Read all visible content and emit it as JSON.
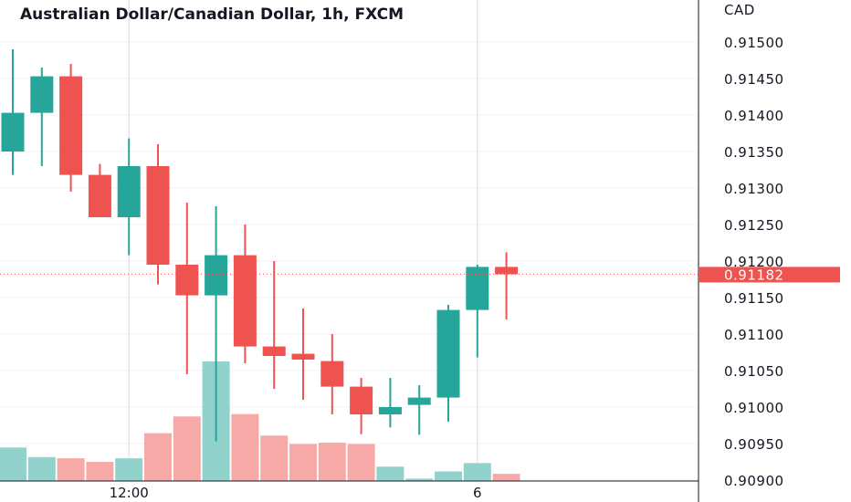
{
  "chart_data": {
    "type": "candlestick",
    "title": "Australian Dollar/Canadian Dollar, 1h, FXCM",
    "currency_label": "CAD",
    "y_ticks": [
      "0.91500",
      "0.91450",
      "0.91400",
      "0.91350",
      "0.91300",
      "0.91250",
      "0.91200",
      "0.91150",
      "0.91100",
      "0.91050",
      "0.91000",
      "0.90950",
      "0.90900"
    ],
    "ylim": [
      0.909,
      0.9155
    ],
    "x_ticks": [
      {
        "label": "12:00",
        "bar": 4
      },
      {
        "label": "6",
        "bar": 16
      }
    ],
    "vertical_gridlines_at_bars": [
      4,
      16
    ],
    "last_price": 0.91182,
    "last_price_label": "0.91182",
    "colors": {
      "up": "#26a69a",
      "down": "#ef5350",
      "up_volume": "#92d2cc",
      "down_volume": "#f7a9a7",
      "grid": "#f0f3fa",
      "axis": "#131722"
    },
    "volume_max": 100,
    "candles": [
      {
        "o": 0.9135,
        "h": 0.9149,
        "l": 0.91318,
        "c": 0.91403,
        "v": 28
      },
      {
        "o": 0.91403,
        "h": 0.91465,
        "l": 0.9133,
        "c": 0.91453,
        "v": 20
      },
      {
        "o": 0.91453,
        "h": 0.9147,
        "l": 0.91295,
        "c": 0.91318,
        "v": 19
      },
      {
        "o": 0.91318,
        "h": 0.91333,
        "l": 0.9126,
        "c": 0.9126,
        "v": 16
      },
      {
        "o": 0.9126,
        "h": 0.91368,
        "l": 0.91208,
        "c": 0.9133,
        "v": 19
      },
      {
        "o": 0.9133,
        "h": 0.9136,
        "l": 0.91168,
        "c": 0.91195,
        "v": 40
      },
      {
        "o": 0.91195,
        "h": 0.9128,
        "l": 0.91045,
        "c": 0.91153,
        "v": 54
      },
      {
        "o": 0.91153,
        "h": 0.91275,
        "l": 0.90953,
        "c": 0.91208,
        "v": 100
      },
      {
        "o": 0.91208,
        "h": 0.9125,
        "l": 0.9106,
        "c": 0.91083,
        "v": 56
      },
      {
        "o": 0.91083,
        "h": 0.912,
        "l": 0.91025,
        "c": 0.9107,
        "v": 38
      },
      {
        "o": 0.91073,
        "h": 0.91135,
        "l": 0.9101,
        "c": 0.91065,
        "v": 31
      },
      {
        "o": 0.91063,
        "h": 0.911,
        "l": 0.9099,
        "c": 0.91028,
        "v": 32
      },
      {
        "o": 0.91028,
        "h": 0.9104,
        "l": 0.90963,
        "c": 0.9099,
        "v": 31
      },
      {
        "o": 0.9099,
        "h": 0.9104,
        "l": 0.90972,
        "c": 0.91,
        "v": 12
      },
      {
        "o": 0.91003,
        "h": 0.9103,
        "l": 0.90962,
        "c": 0.91013,
        "v": 2
      },
      {
        "o": 0.91013,
        "h": 0.9114,
        "l": 0.9098,
        "c": 0.91133,
        "v": 8
      },
      {
        "o": 0.91133,
        "h": 0.91195,
        "l": 0.91068,
        "c": 0.91192,
        "v": 15
      },
      {
        "o": 0.91192,
        "h": 0.91212,
        "l": 0.9112,
        "c": 0.91182,
        "v": 6
      }
    ]
  }
}
